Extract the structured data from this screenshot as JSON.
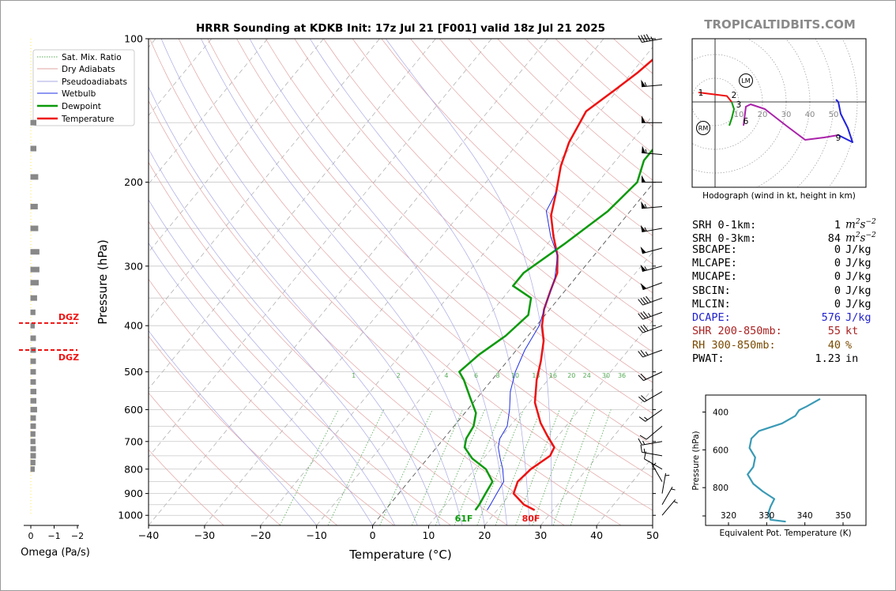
{
  "title": "HRRR Sounding at KDKB Init: 17z Jul 21 [F001] valid 18z Jul 21 2025",
  "site": "TROPICALTIDBITS.COM",
  "colors": {
    "temperature": "#ee1111",
    "dewpoint": "#0a9a0a",
    "wetbulb": "#1f2fe6",
    "dry_adiabat": "#e3a3a3",
    "moist_adiabat": "#a9a9e6",
    "mix_ratio": "#55aa55",
    "theta_e": "#3a9ab5",
    "dgz": "#ee1111",
    "omega": "#888888"
  },
  "chart_data": [
    {
      "type": "line",
      "name": "skewt",
      "xlabel": "Temperature (°C)",
      "ylabel": "Pressure (hPa)",
      "xlim": [
        -40,
        50
      ],
      "ylim": [
        1050,
        100
      ],
      "y_scale": "log",
      "x_ticks": [
        -40,
        -30,
        -20,
        -10,
        0,
        10,
        20,
        30,
        40,
        50
      ],
      "y_ticks": [
        100,
        200,
        300,
        400,
        500,
        600,
        700,
        800,
        900,
        1000
      ],
      "grid": true,
      "legend": "top-left",
      "legend_entries": [
        "Sat. Mix. Ratio",
        "Dry Adiabats",
        "Pseudoadiabats",
        "Wetbulb",
        "Dewpoint",
        "Temperature"
      ],
      "mix_ratio_labels": [
        "1",
        "2",
        "4",
        "6",
        "8",
        "10",
        "13",
        "16",
        "20",
        "24",
        "30",
        "36"
      ],
      "surface_temp_label": "80F",
      "surface_dewpoint_label": "61F",
      "series": [
        {
          "name": "Temperature",
          "points": [
            [
              26.7,
              975
            ],
            [
              24,
              950
            ],
            [
              20.5,
              900
            ],
            [
              19.5,
              850
            ],
            [
              20,
              800
            ],
            [
              21.5,
              750
            ],
            [
              21,
              720
            ],
            [
              18,
              680
            ],
            [
              15,
              640
            ],
            [
              11,
              580
            ],
            [
              8,
              520
            ],
            [
              6,
              475
            ],
            [
              3.5,
              430
            ],
            [
              1,
              400
            ],
            [
              -1,
              370
            ],
            [
              -2.5,
              340
            ],
            [
              -4,
              310
            ],
            [
              -6.5,
              285
            ],
            [
              -10,
              260
            ],
            [
              -13.5,
              235
            ],
            [
              -16,
              210
            ],
            [
              -19,
              185
            ],
            [
              -21,
              165
            ],
            [
              -22.5,
              142
            ],
            [
              -20.5,
              128
            ],
            [
              -19,
              118
            ],
            [
              -18,
              109
            ],
            [
              -17.5,
              100
            ]
          ]
        },
        {
          "name": "Dewpoint",
          "points": [
            [
              16.1,
              975
            ],
            [
              16,
              950
            ],
            [
              15.5,
              900
            ],
            [
              15,
              850
            ],
            [
              12,
              800
            ],
            [
              8,
              760
            ],
            [
              5,
              720
            ],
            [
              4,
              690
            ],
            [
              3.5,
              650
            ],
            [
              2,
              610
            ],
            [
              -1,
              570
            ],
            [
              -5,
              520
            ],
            [
              -7,
              500
            ],
            [
              -6,
              460
            ],
            [
              -4,
              420
            ],
            [
              -3,
              380
            ],
            [
              -5,
              350
            ],
            [
              -10,
              330
            ],
            [
              -10,
              310
            ],
            [
              -7,
              270
            ],
            [
              -4,
              230
            ],
            [
              -3,
              200
            ],
            [
              -5,
              180
            ],
            [
              -5,
              160
            ],
            [
              -4,
              140
            ],
            [
              -2,
              118
            ],
            [
              0,
              100
            ]
          ]
        },
        {
          "name": "Wetbulb",
          "points": [
            [
              18.2,
              975
            ],
            [
              18,
              950
            ],
            [
              17.5,
              900
            ],
            [
              17,
              850
            ],
            [
              15,
              800
            ],
            [
              13,
              760
            ],
            [
              11,
              720
            ],
            [
              10,
              690
            ],
            [
              9.5,
              650
            ],
            [
              7.5,
              600
            ],
            [
              5,
              550
            ],
            [
              3,
              500
            ],
            [
              1.5,
              450
            ],
            [
              0.5,
              400
            ],
            [
              -1.5,
              360
            ],
            [
              -3.5,
              320
            ],
            [
              -6.5,
              285
            ],
            [
              -10.5,
              260
            ],
            [
              -15,
              230
            ],
            [
              -16,
              210
            ]
          ]
        }
      ]
    },
    {
      "type": "line",
      "name": "hodograph",
      "title": "Hodograph (wind in kt, height in km)",
      "ring_labels": [
        "10",
        "20",
        "30",
        "40",
        "50"
      ],
      "point_labels": [
        "1",
        "2",
        "3",
        "6",
        "9"
      ],
      "markers": [
        "RM",
        "LM"
      ],
      "series": [
        {
          "name": "0-3 km",
          "points": [
            [
              -7,
              4
            ],
            [
              -3,
              3.5
            ],
            [
              1,
              3
            ],
            [
              5,
              2.5
            ],
            [
              7,
              0
            ]
          ]
        },
        {
          "name": "3-6 km",
          "points": [
            [
              7,
              0
            ],
            [
              8,
              -3
            ],
            [
              7,
              -7
            ],
            [
              6,
              -10
            ]
          ]
        },
        {
          "name": "6-9 km",
          "points": [
            [
              12,
              -10
            ],
            [
              13,
              -2
            ],
            [
              15,
              -1
            ],
            [
              21,
              -3
            ],
            [
              30,
              -10
            ],
            [
              38,
              -16
            ],
            [
              46,
              -15
            ],
            [
              52,
              -14
            ]
          ]
        },
        {
          "name": "9+ km",
          "points": [
            [
              52,
              -14
            ],
            [
              58,
              -17
            ],
            [
              56,
              -11
            ],
            [
              53,
              -5
            ],
            [
              52,
              0
            ],
            [
              51,
              1
            ]
          ]
        }
      ]
    },
    {
      "type": "line",
      "name": "theta_e",
      "xlabel": "Equivalent Pot. Temperature (K)",
      "ylabel": "Pressure (hPa)",
      "x_ticks": [
        320,
        330,
        340,
        350
      ],
      "y_ticks": [
        400,
        600,
        800
      ],
      "xlim": [
        314,
        356
      ],
      "ylim": [
        1000,
        310
      ],
      "series": [
        {
          "name": "theta_e",
          "points": [
            [
              335,
              980
            ],
            [
              331,
              970
            ],
            [
              330.5,
              930
            ],
            [
              331,
              900
            ],
            [
              332,
              860
            ],
            [
              329,
              820
            ],
            [
              326.5,
              780
            ],
            [
              325,
              730
            ],
            [
              326.5,
              690
            ],
            [
              327,
              640
            ],
            [
              325.5,
              590
            ],
            [
              326,
              540
            ],
            [
              328,
              500
            ],
            [
              334,
              460
            ],
            [
              337.5,
              420
            ],
            [
              338.5,
              390
            ],
            [
              340.5,
              370
            ],
            [
              344,
              330
            ]
          ]
        }
      ]
    },
    {
      "type": "bar",
      "name": "omega",
      "xlabel": "Omega (Pa/s)",
      "x_ticks": [
        "0",
        "−1",
        "−2"
      ],
      "xlim": [
        0.4,
        -2.6
      ],
      "dgz_label": "DGZ",
      "dgz_levels": [
        395,
        450
      ],
      "levels": [
        150,
        170,
        195,
        225,
        250,
        280,
        305,
        325,
        350,
        375,
        400,
        425,
        450,
        475,
        500,
        525,
        550,
        575,
        600,
        625,
        650,
        675,
        700,
        725,
        750,
        775,
        800
      ],
      "values": [
        -0.12,
        -0.12,
        -0.2,
        -0.18,
        -0.2,
        -0.25,
        -0.25,
        -0.22,
        -0.15,
        -0.08,
        -0.05,
        -0.1,
        -0.1,
        -0.1,
        -0.1,
        -0.1,
        -0.12,
        -0.12,
        -0.15,
        -0.1,
        -0.1,
        -0.08,
        -0.08,
        -0.1,
        -0.1,
        -0.08,
        -0.05
      ]
    }
  ],
  "stats": [
    {
      "label": "SRH 0-1km:",
      "value": "1",
      "unit": "m2s-2",
      "color": "#000000"
    },
    {
      "label": "SRH 0-3km:",
      "value": "84",
      "unit": "m2s-2",
      "color": "#000000"
    },
    {
      "label": "SBCAPE:",
      "value": "0",
      "unit": "J/kg",
      "color": "#000000"
    },
    {
      "label": "MLCAPE:",
      "value": "0",
      "unit": "J/kg",
      "color": "#000000"
    },
    {
      "label": "MUCAPE:",
      "value": "0",
      "unit": "J/kg",
      "color": "#000000"
    },
    {
      "label": "SBCIN:",
      "value": "0",
      "unit": "J/kg",
      "color": "#000000"
    },
    {
      "label": "MLCIN:",
      "value": "0",
      "unit": "J/kg",
      "color": "#000000"
    },
    {
      "label": "DCAPE:",
      "value": "576",
      "unit": "J/kg",
      "color": "#2222cc"
    },
    {
      "label": "SHR 200-850mb:",
      "value": "55",
      "unit": "kt",
      "color": "#aa2222"
    },
    {
      "label": "RH 300-850mb:",
      "value": "40",
      "unit": "%",
      "color": "#7a4a00"
    },
    {
      "label": "PWAT:",
      "value": "1.23",
      "unit": "in",
      "color": "#000000"
    }
  ],
  "wind_barbs": [
    {
      "p": 100,
      "spd": 45,
      "dir": 260
    },
    {
      "p": 125,
      "spd": 55,
      "dir": 265
    },
    {
      "p": 150,
      "spd": 50,
      "dir": 270
    },
    {
      "p": 175,
      "spd": 55,
      "dir": 275
    },
    {
      "p": 200,
      "spd": 50,
      "dir": 270
    },
    {
      "p": 225,
      "spd": 55,
      "dir": 265
    },
    {
      "p": 250,
      "spd": 55,
      "dir": 260
    },
    {
      "p": 275,
      "spd": 50,
      "dir": 255
    },
    {
      "p": 300,
      "spd": 55,
      "dir": 255
    },
    {
      "p": 325,
      "spd": 50,
      "dir": 250
    },
    {
      "p": 350,
      "spd": 40,
      "dir": 250
    },
    {
      "p": 375,
      "spd": 35,
      "dir": 250
    },
    {
      "p": 400,
      "spd": 30,
      "dir": 250
    },
    {
      "p": 450,
      "spd": 25,
      "dir": 250
    },
    {
      "p": 500,
      "spd": 20,
      "dir": 245
    },
    {
      "p": 550,
      "spd": 20,
      "dir": 240
    },
    {
      "p": 600,
      "spd": 15,
      "dir": 235
    },
    {
      "p": 650,
      "spd": 10,
      "dir": 230
    },
    {
      "p": 700,
      "spd": 15,
      "dir": 260
    },
    {
      "p": 750,
      "spd": 15,
      "dir": 280
    },
    {
      "p": 800,
      "spd": 10,
      "dir": 300
    },
    {
      "p": 850,
      "spd": 5,
      "dir": 330
    },
    {
      "p": 900,
      "spd": 5,
      "dir": 10
    },
    {
      "p": 950,
      "spd": 5,
      "dir": 30
    },
    {
      "p": 1000,
      "spd": 5,
      "dir": 40
    }
  ]
}
